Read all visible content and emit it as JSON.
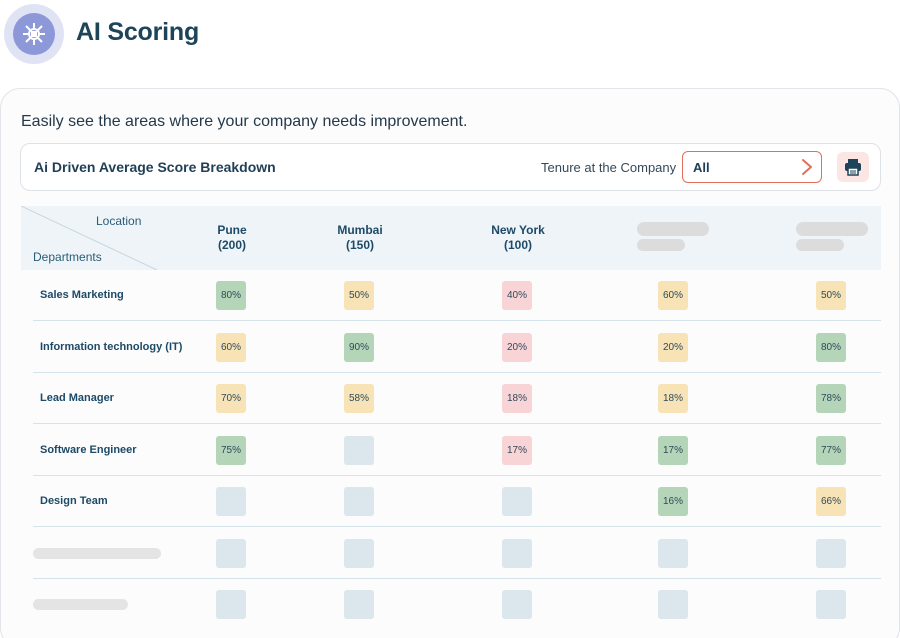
{
  "app": {
    "title": "AI Scoring",
    "logo_icon": "ai-chip-icon"
  },
  "card": {
    "subtitle": "Easily see the areas where your company needs improvement.",
    "toolbar": {
      "title": "Ai Driven Average Score Breakdown",
      "tenure_label": "Tenure at the Company",
      "tenure_value": "All",
      "print_icon": "printer-icon"
    }
  },
  "table": {
    "corner": {
      "location_label": "Location",
      "departments_label": "Departments"
    },
    "columns": [
      {
        "name": "Pune",
        "count": "(200)"
      },
      {
        "name": "Mumbai",
        "count": "(150)"
      },
      {
        "name": "New York",
        "count": "(100)"
      },
      {
        "name": "",
        "count": ""
      },
      {
        "name": "",
        "count": ""
      }
    ],
    "rows": [
      {
        "label": "Sales Marketing",
        "cells": [
          {
            "value": "80%",
            "status": "good"
          },
          {
            "value": "50%",
            "status": "medium"
          },
          {
            "value": "40%",
            "status": "bad"
          },
          {
            "value": "60%",
            "status": "medium"
          },
          {
            "value": "50%",
            "status": "medium"
          }
        ]
      },
      {
        "label": "Information technology (IT)",
        "cells": [
          {
            "value": "60%",
            "status": "medium"
          },
          {
            "value": "90%",
            "status": "good"
          },
          {
            "value": "20%",
            "status": "bad"
          },
          {
            "value": "20%",
            "status": "medium"
          },
          {
            "value": "80%",
            "status": "good"
          }
        ]
      },
      {
        "label": "Lead Manager",
        "cells": [
          {
            "value": "70%",
            "status": "medium"
          },
          {
            "value": "58%",
            "status": "medium"
          },
          {
            "value": "18%",
            "status": "bad"
          },
          {
            "value": "18%",
            "status": "medium"
          },
          {
            "value": "78%",
            "status": "good"
          }
        ]
      },
      {
        "label": "Software Engineer",
        "cells": [
          {
            "value": "75%",
            "status": "good"
          },
          {
            "value": "",
            "status": "empty"
          },
          {
            "value": "17%",
            "status": "bad"
          },
          {
            "value": "17%",
            "status": "good"
          },
          {
            "value": "77%",
            "status": "good"
          }
        ]
      },
      {
        "label": "Design Team",
        "cells": [
          {
            "value": "",
            "status": "empty"
          },
          {
            "value": "",
            "status": "empty"
          },
          {
            "value": "",
            "status": "empty"
          },
          {
            "value": "16%",
            "status": "good"
          },
          {
            "value": "66%",
            "status": "medium"
          }
        ]
      },
      {
        "label": "",
        "cells": [
          {
            "value": "",
            "status": "empty"
          },
          {
            "value": "",
            "status": "empty"
          },
          {
            "value": "",
            "status": "empty"
          },
          {
            "value": "",
            "status": "empty"
          },
          {
            "value": "",
            "status": "empty"
          }
        ]
      },
      {
        "label": "",
        "cells": [
          {
            "value": "",
            "status": "empty"
          },
          {
            "value": "",
            "status": "empty"
          },
          {
            "value": "",
            "status": "empty"
          },
          {
            "value": "",
            "status": "empty"
          },
          {
            "value": "",
            "status": "empty"
          }
        ]
      }
    ]
  },
  "colors": {
    "good": "#b5d5b8",
    "medium": "#f7e3b5",
    "bad": "#f8d4d6",
    "empty": "#dbe6ed",
    "accent": "#e0705a"
  }
}
